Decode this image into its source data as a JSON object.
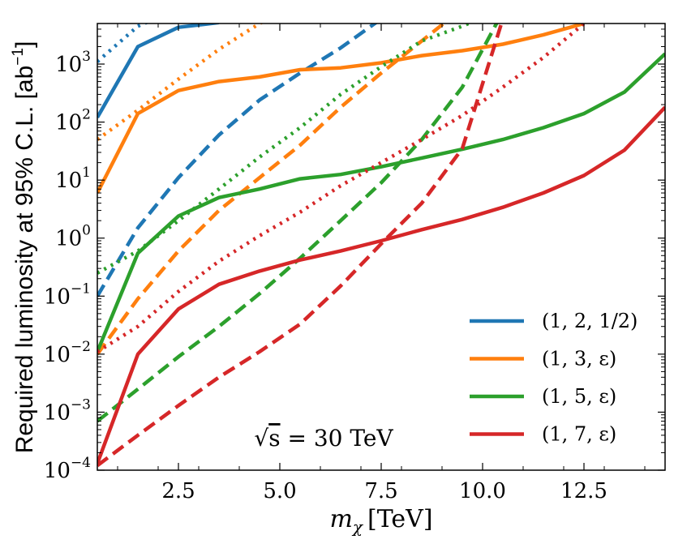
{
  "chart_data": {
    "type": "line",
    "title": "",
    "xlabel": "m_χ [TeV]",
    "xlabel_parts": {
      "sym": "m",
      "sub": "χ",
      "unit": "[TeV]"
    },
    "ylabel": "Required luminosity at 95% C.L. [ab⁻¹]",
    "ylabel_parts": {
      "main": "Required luminosity at 95% C.L. [ab",
      "sup": "−1",
      "close": "]"
    },
    "xscale": "linear",
    "yscale": "log",
    "xlim": [
      0.5,
      14.5
    ],
    "ylim": [
      0.0001,
      5000
    ],
    "xticks": [
      2.5,
      5.0,
      7.5,
      10.0,
      12.5
    ],
    "xtick_labels": [
      "2.5",
      "5.0",
      "7.5",
      "10.0",
      "12.5"
    ],
    "yticks": [
      {
        "value": 0.0001,
        "base": "10",
        "exp": "−4"
      },
      {
        "value": 0.001,
        "base": "10",
        "exp": "−3"
      },
      {
        "value": 0.01,
        "base": "10",
        "exp": "−2"
      },
      {
        "value": 0.1,
        "base": "10",
        "exp": "−1"
      },
      {
        "value": 1,
        "base": "10",
        "exp": "0"
      },
      {
        "value": 10,
        "base": "10",
        "exp": "1"
      },
      {
        "value": 100,
        "base": "10",
        "exp": "2"
      },
      {
        "value": 1000,
        "base": "10",
        "exp": "3"
      }
    ],
    "grid": false,
    "legend_position": "lower-right",
    "annotation": {
      "radicand": "s",
      "text": " = 30 TeV"
    },
    "series": [
      {
        "name": "(1, 2, 1/2)",
        "color": "#1f77b4",
        "style": "solid",
        "x": [
          0.5,
          1.5,
          2.5,
          3.5
        ],
        "y": [
          120,
          2000,
          4300,
          5200
        ]
      },
      {
        "name": "(1, 2, 1/2) dashed",
        "legend": false,
        "color": "#1f77b4",
        "style": "dashed",
        "x": [
          0.5,
          1.5,
          2.5,
          3.5,
          4.5,
          5.5,
          6.5,
          7.5
        ],
        "y": [
          0.1,
          1.5,
          11,
          60,
          240,
          700,
          1900,
          6000
        ]
      },
      {
        "name": "(1, 2, 1/2) dotted",
        "legend": false,
        "color": "#1f77b4",
        "style": "dotted",
        "x": [
          0.5,
          1.5,
          2.5
        ],
        "y": [
          1100,
          4500,
          9000
        ]
      },
      {
        "name": "(1, 3, ε)",
        "color": "#ff7f0e",
        "style": "solid",
        "x": [
          0.5,
          1.5,
          2.5,
          3.5,
          4.5,
          5.5,
          6.5,
          7.5,
          8.5,
          9.5,
          10.5,
          11.5,
          12.5
        ],
        "y": [
          6,
          140,
          350,
          500,
          600,
          800,
          860,
          1050,
          1400,
          1700,
          2200,
          3200,
          5000
        ]
      },
      {
        "name": "(1, 3, ε) dashed",
        "legend": false,
        "color": "#ff7f0e",
        "style": "dashed",
        "x": [
          0.5,
          1.5,
          2.5,
          3.5,
          4.5,
          5.5,
          6.5,
          7.5,
          8.5,
          9.5
        ],
        "y": [
          0.01,
          0.09,
          0.6,
          3,
          11,
          40,
          180,
          700,
          2500,
          9000
        ]
      },
      {
        "name": "(1, 3, ε) dotted",
        "legend": false,
        "color": "#ff7f0e",
        "style": "dotted",
        "x": [
          0.5,
          1.5,
          2.5,
          3.5,
          4.5,
          5.5
        ],
        "y": [
          50,
          160,
          550,
          1800,
          5000,
          12000
        ]
      },
      {
        "name": "(1, 5, ε)",
        "color": "#2ca02c",
        "style": "solid",
        "x": [
          0.5,
          1.5,
          2.5,
          3.5,
          4.5,
          5.5,
          6.5,
          7.5,
          8.5,
          9.5,
          10.5,
          11.5,
          12.5,
          13.5,
          14.5
        ],
        "y": [
          0.011,
          0.55,
          2.4,
          5,
          7,
          10.5,
          12.5,
          17,
          24,
          34,
          50,
          80,
          140,
          330,
          1500
        ]
      },
      {
        "name": "(1, 5, ε) dashed",
        "legend": false,
        "color": "#2ca02c",
        "style": "dashed",
        "x": [
          0.5,
          1.5,
          2.5,
          3.5,
          4.5,
          5.5,
          6.5,
          7.5,
          8.5,
          9.5,
          10.5
        ],
        "y": [
          0.0007,
          0.0025,
          0.009,
          0.03,
          0.11,
          0.45,
          2,
          9,
          50,
          400,
          8000
        ]
      },
      {
        "name": "(1, 5, ε) dotted",
        "legend": false,
        "color": "#2ca02c",
        "style": "dotted",
        "x": [
          0.5,
          1.5,
          2.5,
          3.5,
          4.5,
          5.5,
          6.5,
          7.5,
          8.5,
          9.5,
          10.5
        ],
        "y": [
          0.25,
          0.6,
          2,
          7,
          25,
          80,
          300,
          900,
          2500,
          4500,
          9000
        ]
      },
      {
        "name": "(1, 7, ε)",
        "color": "#d62728",
        "style": "solid",
        "x": [
          0.5,
          1.5,
          2.5,
          3.5,
          4.5,
          5.5,
          6.5,
          7.5,
          8.5,
          9.5,
          10.5,
          11.5,
          12.5,
          13.5,
          14.5
        ],
        "y": [
          0.00013,
          0.01,
          0.06,
          0.16,
          0.27,
          0.42,
          0.6,
          0.9,
          1.4,
          2.1,
          3.4,
          6,
          12,
          33,
          180
        ]
      },
      {
        "name": "(1, 7, ε) dashed",
        "legend": false,
        "color": "#d62728",
        "style": "dashed",
        "x": [
          0.5,
          1.5,
          2.5,
          3.5,
          4.5,
          5.5,
          6.5,
          7.5,
          8.5,
          9.5,
          10.5
        ],
        "y": [
          0.00012,
          0.0004,
          0.0013,
          0.004,
          0.011,
          0.033,
          0.15,
          0.8,
          4,
          35,
          6000
        ]
      },
      {
        "name": "(1, 7, ε) dotted",
        "legend": false,
        "color": "#d62728",
        "style": "dotted",
        "x": [
          0.5,
          1.5,
          2.5,
          3.5,
          4.5,
          5.5,
          6.5,
          7.5,
          8.5,
          9.5,
          10.5,
          11.5,
          12.5
        ],
        "y": [
          0.011,
          0.03,
          0.12,
          0.4,
          1.1,
          2.8,
          8,
          20,
          50,
          130,
          400,
          1300,
          5000
        ]
      }
    ]
  }
}
